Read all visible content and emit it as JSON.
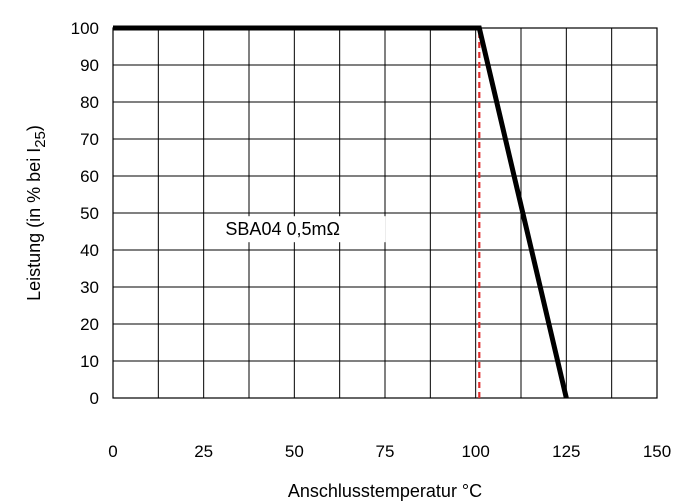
{
  "chart_data": {
    "type": "line",
    "title": "",
    "xlabel": "Anschlusstemperatur °C",
    "ylabel": "Leistung (in % bei I",
    "ylabel_subscript": "25",
    "ylabel_suffix": ")",
    "xlim": [
      0,
      150
    ],
    "ylim": [
      0,
      100
    ],
    "x_ticks": [
      0,
      25,
      50,
      75,
      100,
      125,
      150
    ],
    "x_tick_labels": [
      "0",
      "25",
      "50",
      "75",
      "100",
      "125",
      "150"
    ],
    "y_ticks": [
      0,
      10,
      20,
      30,
      40,
      50,
      60,
      70,
      80,
      90,
      100
    ],
    "y_tick_labels": [
      "0",
      "10",
      "20",
      "30",
      "40",
      "50",
      "60",
      "70",
      "80",
      "90",
      "100"
    ],
    "grid": true,
    "grid_x_step": 12.5,
    "grid_y_step": 10,
    "series": [
      {
        "color": "#000000",
        "style": "solid",
        "x": [
          0,
          101,
          125
        ],
        "y": [
          100,
          100,
          0
        ]
      },
      {
        "color": "#e03030",
        "style": "dashed",
        "x": [
          101,
          101
        ],
        "y": [
          0,
          100
        ]
      }
    ],
    "annotation": {
      "text": "SBA04 0,5mΩ",
      "x": 31,
      "y": 44
    }
  }
}
